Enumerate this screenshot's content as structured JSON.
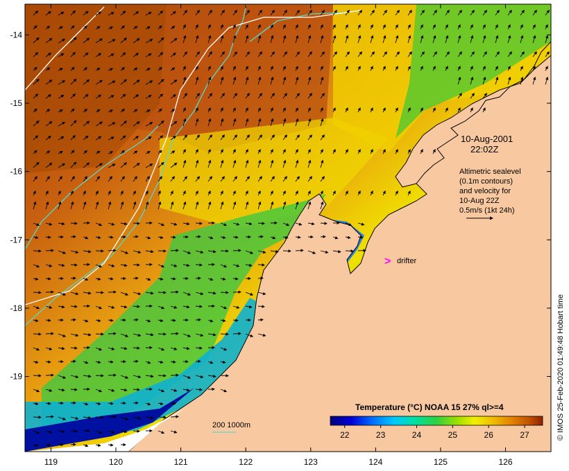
{
  "map": {
    "x_ticks": [
      "119",
      "120",
      "121",
      "122",
      "123",
      "124",
      "125",
      "126"
    ],
    "y_ticks": [
      "-14",
      "-15",
      "-16",
      "-17",
      "-18",
      "-19"
    ],
    "extent": {
      "lon": [
        118.6,
        126.7
      ],
      "lat": [
        -20.1,
        -13.55
      ]
    }
  },
  "annotations": {
    "date": "10-Aug-2001",
    "time": "22:02Z",
    "altimetry_lines": [
      "Altimetric sealevel",
      "(0.1m contours)",
      "and velocity for",
      "10-Aug 22Z",
      "0.5m/s (1kt 24h)"
    ],
    "drifter_label": "drifter",
    "drifter_marker": ">",
    "depth_legend": "200  1000m"
  },
  "colorbar": {
    "title": "Temperature (°C) NOAA 15 27% ql>=4",
    "ticks": [
      "22",
      "23",
      "24",
      "25",
      "26",
      "27"
    ],
    "range": [
      21.6,
      27.5
    ],
    "colors": [
      "#00007a",
      "#0000d8",
      "#0070ff",
      "#00c8ff",
      "#00e0a0",
      "#30d040",
      "#a0e000",
      "#f0f000",
      "#f0c000",
      "#e08000",
      "#c05000",
      "#902000"
    ]
  },
  "credit": "© IMOS 25-Feb-2020 01:49:48 Hobart time",
  "colors": {
    "land": "#f8c9a0",
    "contour_200": "#5ad8c8",
    "contour_1000": "#ffffff",
    "drifter": "#ff00ff"
  }
}
